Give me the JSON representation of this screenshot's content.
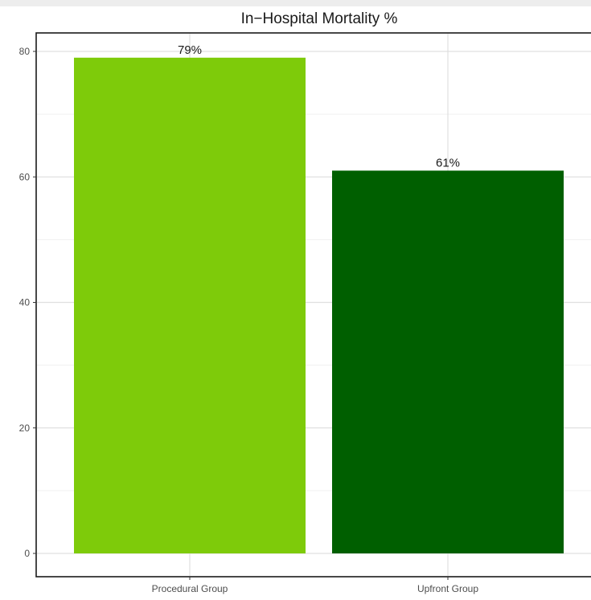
{
  "chart_data": {
    "type": "bar",
    "title": "In−Hospital Mortality %",
    "xlabel": "",
    "ylabel": "",
    "categories": [
      "Procedural Group",
      "Upfront Group"
    ],
    "values": [
      79,
      61
    ],
    "data_labels": [
      "79%",
      "61%"
    ],
    "colors": [
      "#7ecb0a",
      "#005f00"
    ],
    "ylim": [
      0,
      80
    ],
    "yticks": [
      0,
      20,
      40,
      60,
      80
    ],
    "grid": true,
    "legend": "none"
  }
}
